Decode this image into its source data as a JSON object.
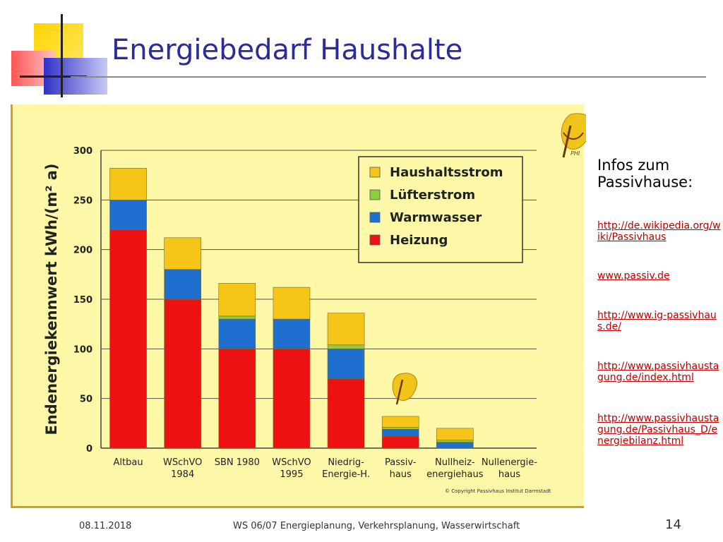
{
  "slide": {
    "title": "Energiebedarf Haushalte",
    "side_heading": "Infos zum Passivhause:",
    "links": [
      "http://de.wikipedia.org/wiki/Passivhaus",
      "www.passiv.de",
      "http://www.ig-passivhaus.de/",
      "http://www.passivhaustagung.de/index.html",
      "http://www.passivhaustagung.de/Passivhaus_D/energiebilanz.html"
    ],
    "footer_date": "08.11.2018",
    "footer_center": "WS 06/07 Energieplanung, Verkehrsplanung, Wasserwirtschaft",
    "page_number": "14",
    "logo_label": "PHI",
    "copyright": "© Copyright Passivhaus Institut Darmstadt"
  },
  "colors": {
    "title": "#2b2b9a",
    "chart_background": "#fdf7a8",
    "link": "#c00000"
  },
  "chart_data": {
    "type": "bar",
    "stacked": true,
    "ylabel": "Endenergiekennwert kWh/(m² a)",
    "ylim": [
      0,
      300
    ],
    "yticks": [
      0,
      50,
      100,
      150,
      200,
      250,
      300
    ],
    "grid": true,
    "legend_position": "top-right",
    "categories": [
      [
        "Altbau"
      ],
      [
        "WSchVO",
        "1984"
      ],
      [
        "SBN 1980"
      ],
      [
        "WSchVO",
        "1995"
      ],
      [
        "Niedrig-",
        "Energie-H."
      ],
      [
        "Passiv-",
        "haus"
      ],
      [
        "Nullheiz-",
        "energiehaus"
      ],
      [
        "Nullenergie-",
        "haus"
      ]
    ],
    "series": [
      {
        "name": "Heizung",
        "color": "#ee1111",
        "values": [
          220,
          150,
          100,
          100,
          70,
          12,
          0,
          0
        ]
      },
      {
        "name": "Warmwasser",
        "color": "#1f6fd0",
        "values": [
          30,
          30,
          30,
          30,
          30,
          7,
          6,
          0
        ]
      },
      {
        "name": "Lüfterstrom",
        "color": "#8ccf3a",
        "values": [
          0,
          0,
          3,
          0,
          4,
          2,
          2,
          0
        ]
      },
      {
        "name": "Haushaltsstrom",
        "color": "#f5c518",
        "values": [
          32,
          32,
          33,
          32,
          32,
          11,
          12,
          0
        ]
      }
    ],
    "legend_order": [
      "Haushaltsstrom",
      "Lüfterstrom",
      "Warmwasser",
      "Heizung"
    ]
  }
}
